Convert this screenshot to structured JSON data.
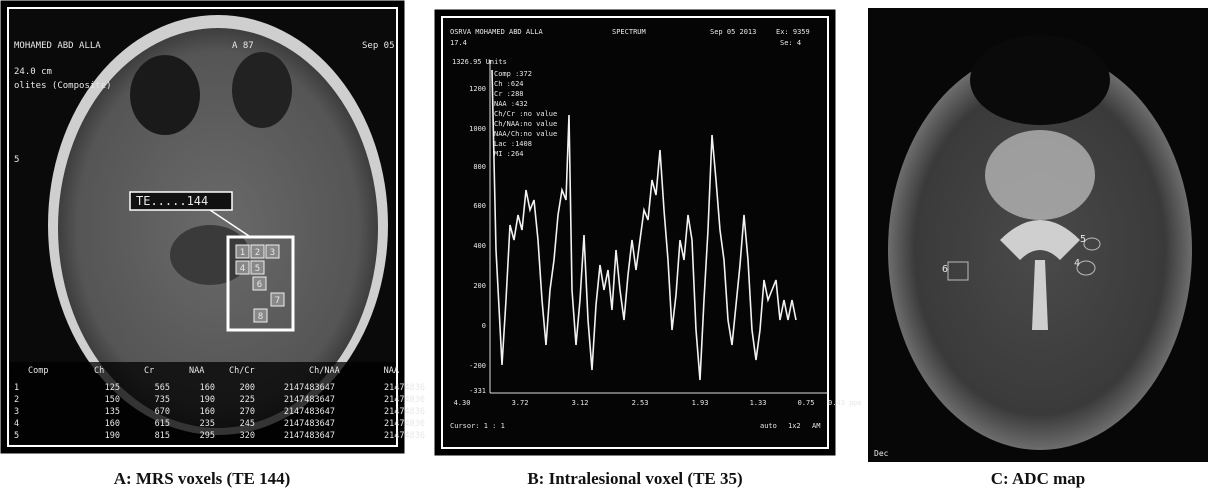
{
  "panels": [
    {
      "caption": "A: MRS voxels (TE 144)",
      "overlay": {
        "patient": "MOHAMED ABD ALLA",
        "slice": "A 87",
        "date": "Sep 05",
        "fov": "24.0 cm",
        "mode": "olites (Composite)",
        "side": "5",
        "te_label": "TE.....144",
        "voxels": [
          "1",
          "2",
          "3",
          "4",
          "5",
          "6",
          "7",
          "8"
        ]
      },
      "table": {
        "header": [
          "Comp",
          "Ch",
          "Cr",
          "NAA",
          "Ch/Cr",
          "Ch/NAA",
          "NAA"
        ],
        "rows": [
          [
            "1",
            "125",
            "565",
            "160",
            "200",
            "2147483647",
            "21474836"
          ],
          [
            "2",
            "150",
            "735",
            "190",
            "225",
            "2147483647",
            "21474836"
          ],
          [
            "3",
            "135",
            "670",
            "160",
            "270",
            "2147483647",
            "21474836"
          ],
          [
            "4",
            "160",
            "615",
            "235",
            "245",
            "2147483647",
            "21474836"
          ],
          [
            "5",
            "190",
            "815",
            "295",
            "320",
            "2147483647",
            "21474836"
          ]
        ]
      }
    },
    {
      "caption": "B: Intralesional voxel (TE 35)",
      "header": {
        "patient": "OSRVA MOHAMED ABD ALLA",
        "mode": "SPECTRUM",
        "date": "Sep 05 2013",
        "exam": "Ex: 9359",
        "series": "Se: 4",
        "slice": "17.4"
      },
      "units": "1326.95 Units",
      "metabolites": [
        "Comp :372",
        "Ch :624",
        "Cr :288",
        "NAA :432",
        "Ch/Cr :no value",
        "Ch/NAA:no value",
        "NAA/Ch:no value",
        "Lac :1408",
        "MI :264"
      ],
      "yticks": [
        "1200",
        "1000",
        "800",
        "600",
        "400",
        "200",
        "0",
        "-200",
        "-331"
      ],
      "xticks": [
        "4.30",
        "3.72",
        "3.12",
        "2.53",
        "1.93",
        "1.33",
        "0.75",
        "0.43 ppm"
      ],
      "footer": {
        "cursor": "Cursor: 1 : 1",
        "scale": "auto",
        "zoom": "1x2",
        "unit": "AM"
      }
    },
    {
      "caption": "C: ADC map",
      "roi_labels": [
        "6",
        "5",
        "4"
      ],
      "corner": "Dec"
    }
  ]
}
